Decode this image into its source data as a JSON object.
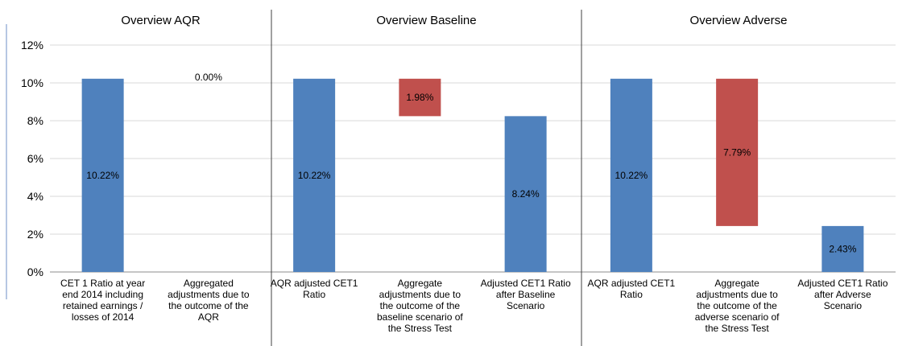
{
  "chart_data": {
    "type": "bar",
    "subtype": "waterfall",
    "ylim": [
      0,
      12
    ],
    "y_ticks": [
      "0%",
      "2%",
      "4%",
      "6%",
      "8%",
      "10%",
      "12%"
    ],
    "grid": true,
    "colors": {
      "total": "#4F81BD",
      "adjustment": "#C0504D"
    },
    "sections": [
      {
        "title": "Overview AQR"
      },
      {
        "title": "Overview Baseline"
      },
      {
        "title": "Overview Adverse"
      }
    ],
    "bars": [
      {
        "section": 0,
        "kind": "total",
        "base": 0,
        "value": 10.22,
        "label": "10.22%",
        "category": [
          "CET 1 Ratio at year",
          "end 2014 including",
          "retained earnings /",
          "losses of 2014"
        ]
      },
      {
        "section": 0,
        "kind": "adjustment",
        "base": 10.22,
        "value": 0.0,
        "label": "0.00%",
        "category": [
          "Aggregated",
          "adjustments due to",
          "the outcome of the",
          "AQR"
        ]
      },
      {
        "section": 1,
        "kind": "total",
        "base": 0,
        "value": 10.22,
        "label": "10.22%",
        "category": [
          "AQR adjusted CET1",
          "Ratio"
        ]
      },
      {
        "section": 1,
        "kind": "adjustment",
        "base": 8.24,
        "value": 1.98,
        "label": "1.98%",
        "category": [
          "Aggregate",
          "adjustments due to",
          "the outcome of the",
          "baseline scenario of",
          "the Stress Test"
        ]
      },
      {
        "section": 1,
        "kind": "total",
        "base": 0,
        "value": 8.24,
        "label": "8.24%",
        "category": [
          "Adjusted CET1 Ratio",
          "after Baseline",
          "Scenario"
        ]
      },
      {
        "section": 2,
        "kind": "total",
        "base": 0,
        "value": 10.22,
        "label": "10.22%",
        "category": [
          "AQR adjusted CET1",
          "Ratio"
        ]
      },
      {
        "section": 2,
        "kind": "adjustment",
        "base": 2.43,
        "value": 7.79,
        "label": "7.79%",
        "category": [
          "Aggregate",
          "adjustments due to",
          "the outcome of the",
          "adverse scenario of",
          "the Stress Test"
        ]
      },
      {
        "section": 2,
        "kind": "total",
        "base": 0,
        "value": 2.43,
        "label": "2.43%",
        "category": [
          "Adjusted CET1 Ratio",
          "after Adverse",
          "Scenario"
        ]
      }
    ]
  }
}
